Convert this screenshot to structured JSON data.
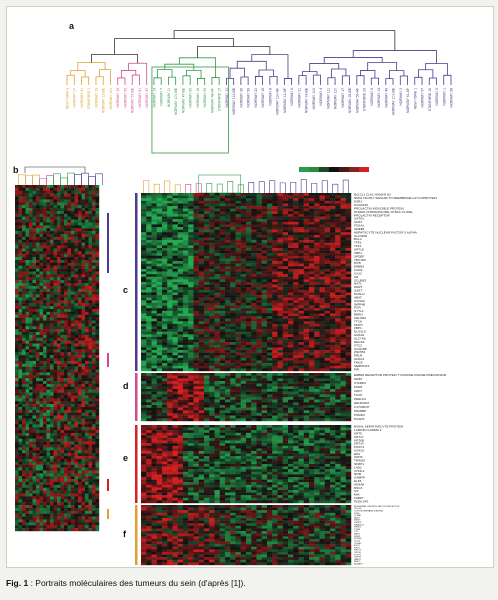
{
  "figure": {
    "panel_labels": [
      "a",
      "b",
      "c",
      "d",
      "e",
      "f"
    ],
    "colors": {
      "high": "#d42222",
      "low": "#22a050",
      "mid": "#111111",
      "cluster_orange": "#e0a030",
      "cluster_pink": "#d04c8e",
      "cluster_green": "#2f9a4a",
      "cluster_purple": "#4a3a90",
      "bar_purple": "#4a3a90",
      "bar_pink": "#d04c8e",
      "bar_red": "#d42222",
      "bar_orange": "#e0a030"
    },
    "dendrogram_groups": [
      {
        "color": "#e0a030",
        "leaves": 7
      },
      {
        "color": "#d04c8e",
        "leaves": 5
      },
      {
        "color": "#2f9a4a",
        "leaves": 10
      },
      {
        "color": "#4a3a90",
        "leaves": 10
      },
      {
        "color": "#4a3a90",
        "leaves": 22
      }
    ],
    "tumour_labels": [
      "NEW YORK 3",
      "NORWAY 27",
      "NORWAY 41",
      "STANFORD 2",
      "NORWAY 19",
      "NORWAY 12-BE",
      "NORWAY 101",
      "NORWAY 15",
      "NORWAY 53",
      "NORWAY 57-BE",
      "NORWAY 61",
      "NORWAY 47",
      "NORWAY 14",
      "NORWAY 7",
      "NORWAY 11",
      "NORWAY 100-BE",
      "NORWAY 47-BE",
      "NORWAY 65",
      "NORWAY 18",
      "NORWAY 39",
      "NORWAY 48-AF",
      "STANFORD 17",
      "NORWAY 10",
      "NORWAY 112-BE",
      "NORWAY 26",
      "NORWAY 56",
      "NORWAY 22",
      "NORWAY 16",
      "NORWAY 8",
      "NORWAY 100-AF",
      "NORWAY 12-AF",
      "NORWAY 6",
      "NORWAY 21",
      "NORWAY 19-BE",
      "NORWAY 102",
      "NORWAY 4",
      "NORWAY 111",
      "NORWAY 110",
      "NORWAY 17",
      "NORWAY 26-BE",
      "NORWAY 55-AF",
      "STANFORD 23",
      "NORWAY 9",
      "NORWAY 13",
      "NORWAY 49",
      "NORWAY 101-BE",
      "NORWAY 3",
      "NORWAY 61-AF",
      "NEW YORK 1",
      "NORWAY 57",
      "STANFORD 16",
      "NORWAY 5",
      "NORWAY 1",
      "NORWAY 58"
    ],
    "gene_block_c": [
      "BCL2L1 CLK1 HUMAN H2",
      "NRD1 HIGHLY SIMILAR TO MEMBRANE GLYCOPROTEIN",
      "ESR1",
      "KIAA0130",
      "PROLACTIN INDUCIBLE PROTEIN",
      "HUMAN CHROMOSOME 16 BAC CLONE",
      "PROLACTIN RECEPTOR",
      "GATA3",
      "CD24",
      "FOXA1",
      "GREB1",
      "HEPATOCYTE NUCLEAR FACTOR 3 ALPHA",
      "SLC39A6",
      "BCL2",
      "TFF3",
      "TFF1",
      "KRT18",
      "XBP1",
      "SPDEF",
      "TBC1D9",
      "MYB",
      "ERBB3",
      "AGR2",
      "CA12",
      "AR",
      "SCUBE2",
      "NAT1",
      "MAPT",
      "IL6ST",
      "DNALI1",
      "ABAT",
      "CCNG2",
      "INPP4B",
      "PGR",
      "SYTL4",
      "RERG",
      "CELSR2",
      "TTC8",
      "MLPH",
      "FBP1",
      "ELOVL5",
      "ANXA9",
      "SLC7A8",
      "DEGS2",
      "STC2",
      "ACADSB",
      "ZNF552",
      "PRLR",
      "GFRA1",
      "FMO5",
      "SERPINA3",
      "PIP"
    ],
    "gene_block_d": [
      "ERBB2 RECEPTOR PROTEIN TYROSINE KINASE PRECURSOR",
      "GRB7",
      "STARD3",
      "PNMT",
      "CRK7",
      "TCAP",
      "PERLD1",
      "NEUROD2",
      "C17ORF37",
      "PPARBP",
      "PSMD3",
      "PGAP3"
    ],
    "gene_block_e": [
      "BASAL KERATINOCYTE PROTEIN",
      "LAMININ GAMMA 2",
      "KRT5",
      "KRT17",
      "KRT6B",
      "KRT14",
      "FOXC1",
      "SOX10",
      "EN1",
      "CDH3",
      "TRIM29",
      "SFRP1",
      "LAD1",
      "CHI3L2",
      "NFIB",
      "GABRP",
      "ELF5",
      "ANXA8",
      "DSC3",
      "KIT",
      "MIA",
      "FABP7",
      "PDZK1IP1"
    ],
    "gene_block_f": [
      "EPIDERMAL GROWTH FACTOR RECEPTOR",
      "CDC20",
      "TOPOISOMERASE II ALPHA",
      "STK6",
      "CCNB1",
      "BUB1",
      "MKI67",
      "CENPF",
      "KIAA0101",
      "MYBL2",
      "TYMS",
      "TTK",
      "MELK",
      "RRM2",
      "FOXM1",
      "CDC6",
      "CCNE1",
      "EXO1",
      "KIF2C",
      "KNTC2",
      "ORC6L",
      "PTTG1",
      "CEP55",
      "UBE2C",
      "BIRC5",
      "NUSAP1"
    ],
    "scale_bar": {
      "colors": [
        "#22a050",
        "#2f8a3a",
        "#1a4a26",
        "#111111",
        "#4a1a1a",
        "#8a2020",
        "#d42222"
      ]
    }
  },
  "caption": {
    "prefix": "Fig. 1",
    "text": " : Portraits moléculaires des tumeurs du sein (d'après [1])."
  }
}
